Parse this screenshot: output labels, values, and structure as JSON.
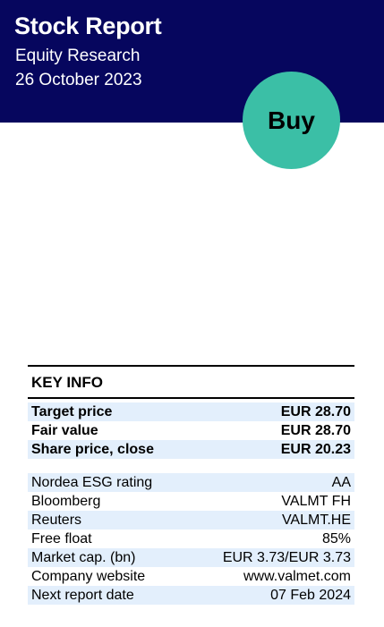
{
  "header": {
    "title": "Stock Report",
    "subtitle": "Equity Research",
    "date": "26 October 2023"
  },
  "rating": "Buy",
  "key_info": {
    "title": "KEY INFO",
    "primary": [
      {
        "label": "Target price",
        "value": "EUR 28.70"
      },
      {
        "label": "Fair value",
        "value": "EUR 28.70"
      },
      {
        "label": "Share price, close",
        "value": "EUR 20.23"
      }
    ],
    "details": [
      {
        "label": "Nordea ESG rating",
        "value": "AA"
      },
      {
        "label": "Bloomberg",
        "value": "VALMT FH"
      },
      {
        "label": "Reuters",
        "value": "VALMT.HE"
      },
      {
        "label": "Free float",
        "value": "85%"
      },
      {
        "label": "Market cap. (bn)",
        "value": "EUR 3.73/EUR 3.73"
      },
      {
        "label": "Company website",
        "value": "www.valmet.com"
      },
      {
        "label": "Next report date",
        "value": "07 Feb 2024"
      }
    ]
  },
  "colors": {
    "header_bg": "#06065e",
    "badge": "#3bbfa6",
    "row_shade": "#e3effc"
  }
}
